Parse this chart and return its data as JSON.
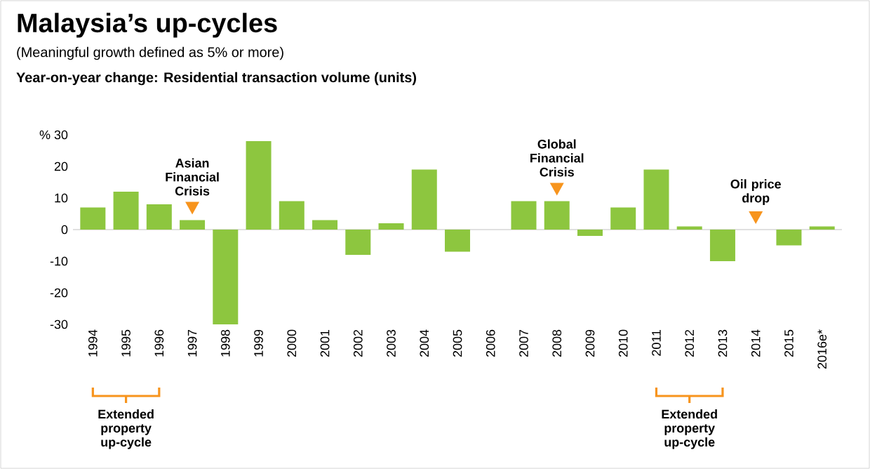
{
  "chart_data": {
    "type": "bar",
    "title": "Malaysia’s up-cycles",
    "subtitle": "(Meaningful growth defined as 5% or more)",
    "ylabel": "Year-on-year change: Residential transaction volume (units)",
    "categories": [
      "1994",
      "1995",
      "1996",
      "1997",
      "1998",
      "1999",
      "2000",
      "2001",
      "2002",
      "2003",
      "2004",
      "2005",
      "2006",
      "2007",
      "2008",
      "2009",
      "2010",
      "2011",
      "2012",
      "2013",
      "2014",
      "2015",
      "2016e*"
    ],
    "values": [
      7,
      12,
      8,
      3,
      -30,
      28,
      9,
      3,
      -8,
      2,
      19,
      -7,
      0,
      9,
      9,
      -2,
      7,
      19,
      1,
      -10,
      0,
      -5,
      1
    ],
    "color": "#8dc63f",
    "ylim": [
      -30,
      30
    ],
    "yticks": [
      -30,
      -20,
      -10,
      0,
      10,
      20,
      {
        "value": 30,
        "label": "% 30"
      }
    ],
    "annotations": [
      {
        "text": "Asian Financial Crisis",
        "x": "1997",
        "y": 3
      },
      {
        "text": "Global Financial Crisis",
        "x": "2008",
        "y": 9
      },
      {
        "text": "Oil price drop",
        "x": "2014",
        "y": 0
      },
      {
        "text": "Extended property up-cycle",
        "x": "1995"
      },
      {
        "text": "Extended property up-cycle",
        "x": "2012"
      }
    ]
  }
}
